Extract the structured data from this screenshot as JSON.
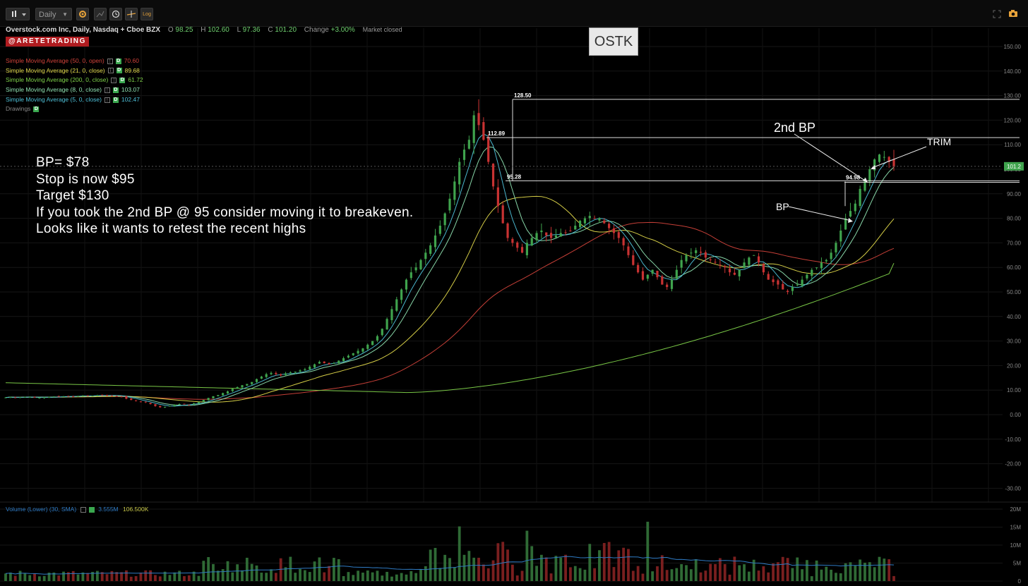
{
  "toolbar": {
    "interval": "Daily",
    "log_label": "Log",
    "icons": [
      "bar-style-icon",
      "caret-down-icon",
      "gear-icon",
      "crosshair-icon",
      "clock-icon",
      "drawing-tool-icon",
      "log-scale-icon",
      "fullscreen-icon",
      "camera-icon"
    ]
  },
  "symbol": {
    "name": "Overstock.com Inc, Daily, Nasdaq + Cboe BZX",
    "open_label": "O",
    "open": "98.25",
    "high_label": "H",
    "high": "102.60",
    "low_label": "L",
    "low": "97.36",
    "close_label": "C",
    "close": "101.20",
    "change_label": "Change",
    "change": "+3.00%",
    "status": "Market closed"
  },
  "brand": "@ARETETRADING",
  "ticker_box": "OSTK",
  "legend": [
    {
      "name": "Simple Moving Average (50, 0, open)",
      "value": "70.60",
      "color": "#d0423a"
    },
    {
      "name": "Simple Moving Average (21, 0, close)",
      "value": "89.68",
      "color": "#e0d84a"
    },
    {
      "name": "Simple Moving Average (200, 0, close)",
      "value": "61.72",
      "color": "#7fd24a"
    },
    {
      "name": "Simple Moving Average (8, 0, close)",
      "value": "103.07",
      "color": "#8ee0b0"
    },
    {
      "name": "Simple Moving Average (5, 0, close)",
      "value": "102.47",
      "color": "#4ec0d8"
    }
  ],
  "drawings_label": "Drawings",
  "note": [
    "BP= $78",
    "Stop is now $95",
    "Target $130",
    "If you took the 2nd BP @ 95 consider moving it to breakeven.",
    "Looks like it wants to retest the recent highs"
  ],
  "volume_legend": {
    "name": "Volume (Lower) (30, SMA)",
    "value1": "3.555M",
    "value2": "106.500K"
  },
  "chart_data": {
    "type": "candlestick",
    "price_axis": {
      "ticks": [
        "150.00",
        "140.00",
        "130.00",
        "120.00",
        "110.00",
        "100.00",
        "90.00",
        "80.00",
        "70.00",
        "60.00",
        "50.00",
        "40.00",
        "30.00",
        "20.00",
        "10.00",
        "0.00",
        "-10.00",
        "-20.00",
        "-30.00"
      ],
      "range": [
        -34,
        155
      ],
      "last_price": "101.2"
    },
    "volume_axis": {
      "ticks": [
        "20M",
        "15M",
        "10M",
        "5M",
        "0"
      ],
      "range": [
        0,
        20000000
      ]
    },
    "bars": 222,
    "close_approx": [
      7,
      7.2,
      7,
      7.1,
      7.3,
      7.2,
      7,
      6.9,
      7.1,
      7.2,
      7.4,
      7.3,
      7.5,
      7.6,
      7.4,
      7.6,
      7.8,
      7.6,
      7.7,
      7.9,
      8,
      7.8,
      7.7,
      7.5,
      7.3,
      6.5,
      6,
      5.5,
      5.2,
      5,
      4.3,
      3.5,
      3,
      3.2,
      3.6,
      4,
      4.3,
      4.2,
      4,
      4.6,
      5.2,
      6,
      6.8,
      7.5,
      8,
      8.8,
      9.5,
      10.5,
      11.2,
      12,
      12.5,
      13.3,
      14.5,
      15.5,
      16.5,
      17,
      16.5,
      16,
      16.8,
      17.2,
      17.5,
      18,
      18.5,
      19.5,
      20.5,
      21.5,
      21,
      20.5,
      21,
      22,
      23,
      24,
      25,
      26,
      27,
      28.5,
      30,
      32,
      35,
      39,
      43,
      47,
      51,
      55,
      58,
      60,
      63,
      66,
      69,
      73,
      77,
      82,
      88,
      95,
      103,
      108,
      112,
      122,
      118,
      112,
      103,
      93,
      85,
      78,
      72,
      70,
      68,
      66,
      70,
      72,
      74,
      75,
      73,
      72,
      73,
      74,
      74,
      75,
      77,
      79,
      80,
      81,
      80,
      80,
      78,
      76,
      74,
      72,
      69,
      65,
      61,
      58,
      55,
      57,
      59,
      56,
      53,
      52,
      55,
      59,
      63,
      65,
      66,
      67,
      66,
      64,
      63,
      62,
      61,
      60,
      58,
      57,
      59,
      62,
      64,
      65,
      62,
      58,
      55,
      54,
      53,
      51,
      50,
      52,
      53,
      55,
      57,
      59,
      60,
      62,
      63,
      66,
      70,
      75,
      80,
      83,
      86,
      92,
      96,
      100,
      104,
      106,
      105,
      103,
      101
    ],
    "moving_averages": [
      {
        "name": "Simple Moving Average (50, 0, open)",
        "last": 70.6
      },
      {
        "name": "Simple Moving Average (21, 0, close)",
        "last": 89.68
      },
      {
        "name": "Simple Moving Average (200, 0, close)",
        "last": 61.72
      },
      {
        "name": "Simple Moving Average (8, 0, close)",
        "last": 103.07
      },
      {
        "name": "Simple Moving Average (5, 0, close)",
        "last": 102.47
      }
    ],
    "horizontal_levels": [
      {
        "price": 128.5,
        "label": "128.50"
      },
      {
        "price": 112.89,
        "label": "112.89"
      },
      {
        "price": 95.28,
        "label": "95.28"
      },
      {
        "price": 94.98,
        "label": "94.98"
      }
    ],
    "annotations": [
      "2nd BP",
      "TRIM",
      "BP"
    ]
  },
  "colors": {
    "up": "#3fa34d",
    "down": "#c83232",
    "background": "#000000",
    "accent": "#b01c20"
  }
}
